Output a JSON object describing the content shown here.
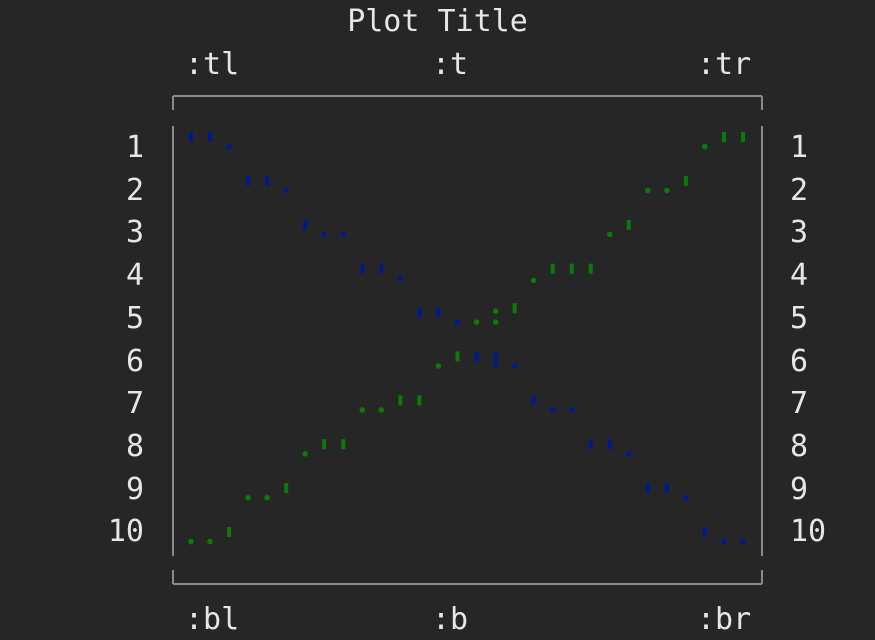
{
  "chart_data": {
    "type": "scatter",
    "title": "Plot Title",
    "corner_labels": {
      "tl": ":tl",
      "t": ":t",
      "tr": ":tr",
      "bl": ":bl",
      "b": ":b",
      "br": ":br"
    },
    "left_labels": [
      "1",
      "2",
      "3",
      "4",
      "5",
      "6",
      "7",
      "8",
      "9",
      "10"
    ],
    "right_labels": [
      "1",
      "2",
      "3",
      "4",
      "5",
      "6",
      "7",
      "8",
      "9",
      "10"
    ],
    "xlim": [
      1,
      32
    ],
    "ylim": [
      1,
      10
    ],
    "y_inverted": true,
    "series": [
      {
        "color": "#001a8c",
        "points": [
          {
            "x": 1,
            "y": 1.0,
            "glyph": "'"
          },
          {
            "x": 2,
            "y": 1.0,
            "glyph": "'"
          },
          {
            "x": 3,
            "y": 1.15,
            "glyph": "."
          },
          {
            "x": 4,
            "y": 2.0,
            "glyph": "'"
          },
          {
            "x": 5,
            "y": 2.0,
            "glyph": "'"
          },
          {
            "x": 6,
            "y": 2.15,
            "glyph": "."
          },
          {
            "x": 7,
            "y": 3.0,
            "glyph": "'"
          },
          {
            "x": 8,
            "y": 3.15,
            "glyph": "."
          },
          {
            "x": 9,
            "y": 3.15,
            "glyph": "."
          },
          {
            "x": 10,
            "y": 4.0,
            "glyph": "'"
          },
          {
            "x": 11,
            "y": 4.0,
            "glyph": "'"
          },
          {
            "x": 12,
            "y": 4.15,
            "glyph": "."
          },
          {
            "x": 13,
            "y": 5.0,
            "glyph": "'"
          },
          {
            "x": 14,
            "y": 5.0,
            "glyph": "'"
          },
          {
            "x": 15,
            "y": 5.15,
            "glyph": "."
          },
          {
            "x": 16,
            "y": 6.0,
            "glyph": "'"
          },
          {
            "x": 17,
            "y": 6.0,
            "glyph": "'"
          },
          {
            "x": 17,
            "y": 6.15,
            "glyph": "."
          },
          {
            "x": 18,
            "y": 6.15,
            "glyph": "."
          },
          {
            "x": 19,
            "y": 7.0,
            "glyph": "'"
          },
          {
            "x": 20,
            "y": 7.15,
            "glyph": "."
          },
          {
            "x": 21,
            "y": 7.15,
            "glyph": "."
          },
          {
            "x": 22,
            "y": 8.0,
            "glyph": "'"
          },
          {
            "x": 23,
            "y": 8.0,
            "glyph": "'"
          },
          {
            "x": 24,
            "y": 8.15,
            "glyph": "."
          },
          {
            "x": 25,
            "y": 9.0,
            "glyph": "'"
          },
          {
            "x": 26,
            "y": 9.0,
            "glyph": "'"
          },
          {
            "x": 27,
            "y": 9.15,
            "glyph": "."
          },
          {
            "x": 28,
            "y": 10.0,
            "glyph": "'"
          },
          {
            "x": 29,
            "y": 10.15,
            "glyph": "."
          },
          {
            "x": 30,
            "y": 10.15,
            "glyph": "."
          }
        ]
      },
      {
        "color": "#0a7a0a",
        "points": [
          {
            "x": 1,
            "y": 10.15,
            "glyph": "."
          },
          {
            "x": 2,
            "y": 10.15,
            "glyph": "."
          },
          {
            "x": 3,
            "y": 10.0,
            "glyph": "'"
          },
          {
            "x": 4,
            "y": 9.15,
            "glyph": "."
          },
          {
            "x": 5,
            "y": 9.15,
            "glyph": "."
          },
          {
            "x": 6,
            "y": 9.0,
            "glyph": "'"
          },
          {
            "x": 7,
            "y": 8.15,
            "glyph": "."
          },
          {
            "x": 8,
            "y": 8.0,
            "glyph": "'"
          },
          {
            "x": 9,
            "y": 8.0,
            "glyph": "'"
          },
          {
            "x": 10,
            "y": 7.15,
            "glyph": "."
          },
          {
            "x": 11,
            "y": 7.15,
            "glyph": "."
          },
          {
            "x": 12,
            "y": 7.0,
            "glyph": "'"
          },
          {
            "x": 13,
            "y": 7.0,
            "glyph": "'"
          },
          {
            "x": 14,
            "y": 6.15,
            "glyph": "."
          },
          {
            "x": 15,
            "y": 6.0,
            "glyph": "'"
          },
          {
            "x": 16,
            "y": 5.15,
            "glyph": "."
          },
          {
            "x": 17,
            "y": 5.15,
            "glyph": "."
          },
          {
            "x": 17,
            "y": 4.9,
            "glyph": "."
          },
          {
            "x": 18,
            "y": 4.9,
            "glyph": "'"
          },
          {
            "x": 19,
            "y": 4.2,
            "glyph": "."
          },
          {
            "x": 20,
            "y": 4.0,
            "glyph": "'"
          },
          {
            "x": 21,
            "y": 4.0,
            "glyph": "'"
          },
          {
            "x": 22,
            "y": 4.0,
            "glyph": "'"
          },
          {
            "x": 23,
            "y": 3.15,
            "glyph": "."
          },
          {
            "x": 24,
            "y": 3.0,
            "glyph": "'"
          },
          {
            "x": 25,
            "y": 2.15,
            "glyph": "."
          },
          {
            "x": 26,
            "y": 2.15,
            "glyph": "."
          },
          {
            "x": 27,
            "y": 2.0,
            "glyph": "'"
          },
          {
            "x": 28,
            "y": 1.15,
            "glyph": "."
          },
          {
            "x": 29,
            "y": 1.0,
            "glyph": "'"
          },
          {
            "x": 30,
            "y": 1.0,
            "glyph": "'"
          }
        ]
      }
    ]
  }
}
